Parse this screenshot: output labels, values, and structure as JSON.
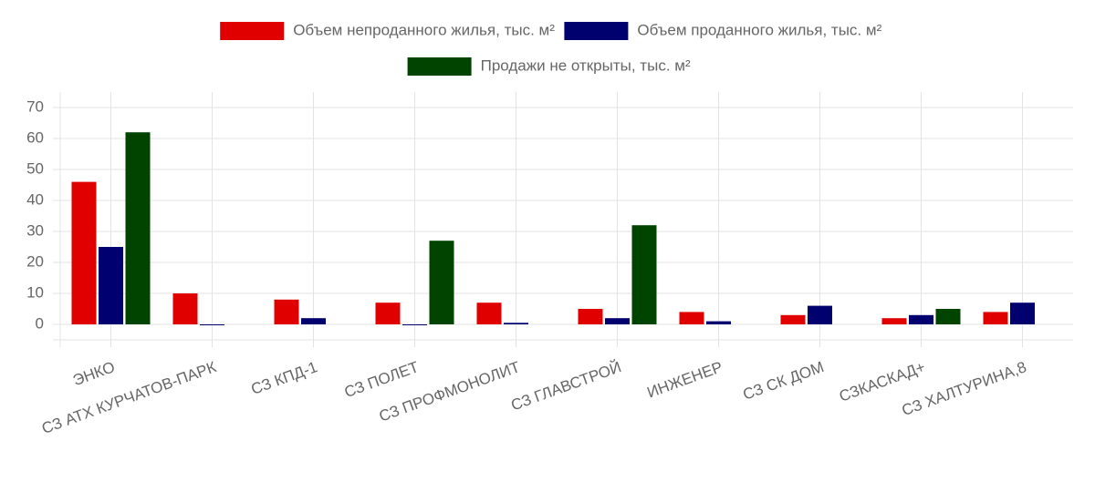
{
  "chart_data": {
    "type": "bar",
    "categories": [
      "ЭНКО",
      "СЗ АТХ КУРЧАТОВ-ПАРК",
      "СЗ КПД-1",
      "СЗ ПОЛЕТ",
      "СЗ ПРОФМОНОЛИТ",
      "СЗ ГЛАВСТРОЙ",
      "ИНЖЕНЕР",
      "СЗ СК ДОМ",
      "СЗКАСКАД+",
      "СЗ ХАЛТУРИНА,8"
    ],
    "series": [
      {
        "name": "Объем непроданного жилья, тыс. м²",
        "color": "#e00000",
        "values": [
          46,
          10,
          8,
          7,
          7,
          5,
          4,
          3,
          2,
          4
        ]
      },
      {
        "name": "Объем проданного жилья, тыс. м²",
        "color": "#00006e",
        "values": [
          25,
          0,
          2,
          0,
          0.5,
          2,
          1,
          6,
          3,
          7
        ]
      },
      {
        "name": "Продажи не открыты, тыс. м²",
        "color": "#004400",
        "values": [
          62,
          null,
          null,
          27,
          null,
          32,
          null,
          null,
          5,
          null
        ]
      }
    ],
    "ylim": [
      -5,
      75
    ],
    "yticks": [
      0,
      10,
      20,
      30,
      40,
      50,
      60,
      70
    ],
    "grid": true,
    "legend": "top"
  }
}
